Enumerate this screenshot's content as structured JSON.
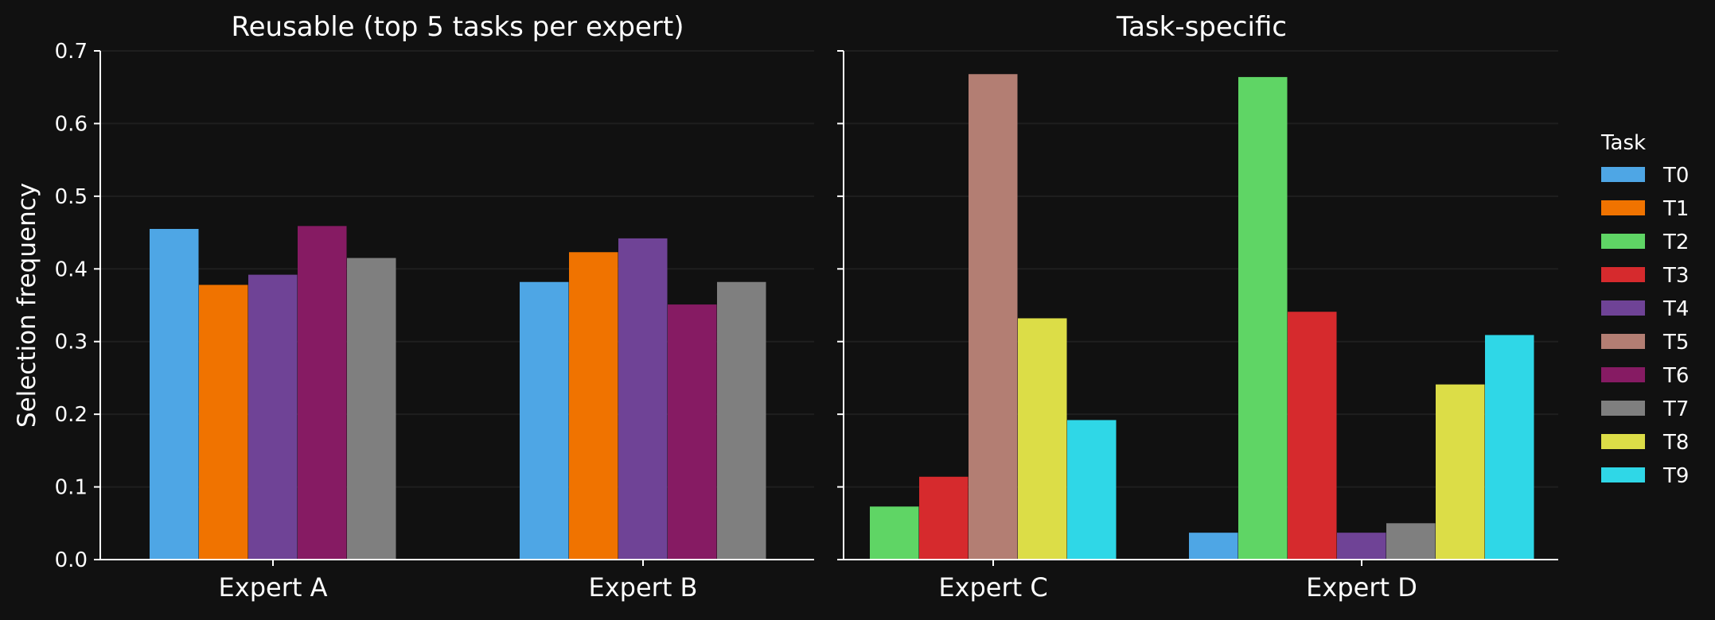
{
  "figure": {
    "ylabel": "Selection frequency",
    "legend_title": "Task",
    "legend_placement": "right, outside plots",
    "background": "#111111",
    "grid": true
  },
  "tasks": [
    {
      "name": "T0",
      "color": "#4ea6e5"
    },
    {
      "name": "T1",
      "color": "#f07300"
    },
    {
      "name": "T2",
      "color": "#5fd565"
    },
    {
      "name": "T3",
      "color": "#d62a2d"
    },
    {
      "name": "T4",
      "color": "#6f4396"
    },
    {
      "name": "T5",
      "color": "#b37e73"
    },
    {
      "name": "T6",
      "color": "#861b63"
    },
    {
      "name": "T7",
      "color": "#7f7f7f"
    },
    {
      "name": "T8",
      "color": "#dcdd47"
    },
    {
      "name": "T9",
      "color": "#2fd7e7"
    }
  ],
  "chart_data": [
    {
      "type": "bar",
      "title": "Reusable (top 5 tasks per expert)",
      "xlabel": "",
      "ylabel": "Selection frequency",
      "ylim": [
        0,
        0.7
      ],
      "yticks": [
        "0.0",
        "0.1",
        "0.2",
        "0.3",
        "0.4",
        "0.5",
        "0.6",
        "0.7"
      ],
      "categories": [
        "Expert A",
        "Expert B"
      ],
      "series": [
        {
          "name": "T0",
          "values": [
            0.455,
            0.382
          ]
        },
        {
          "name": "T1",
          "values": [
            0.378,
            0.423
          ]
        },
        {
          "name": "T4",
          "values": [
            0.392,
            0.442
          ]
        },
        {
          "name": "T6",
          "values": [
            0.459,
            0.351
          ]
        },
        {
          "name": "T7",
          "values": [
            0.415,
            0.382
          ]
        }
      ]
    },
    {
      "type": "bar",
      "title": "Task-specific",
      "xlabel": "",
      "ylim": [
        0,
        0.7
      ],
      "categories": [
        "Expert C",
        "Expert D"
      ],
      "groups": [
        [
          {
            "task": "T2",
            "value": 0.073
          },
          {
            "task": "T3",
            "value": 0.114
          },
          {
            "task": "T5",
            "value": 0.668
          },
          {
            "task": "T8",
            "value": 0.332
          },
          {
            "task": "T9",
            "value": 0.192
          }
        ],
        [
          {
            "task": "T0",
            "value": 0.037
          },
          {
            "task": "T2",
            "value": 0.664
          },
          {
            "task": "T3",
            "value": 0.341
          },
          {
            "task": "T4",
            "value": 0.037
          },
          {
            "task": "T7",
            "value": 0.05
          },
          {
            "task": "T8",
            "value": 0.241
          },
          {
            "task": "T9",
            "value": 0.309
          }
        ]
      ]
    }
  ]
}
